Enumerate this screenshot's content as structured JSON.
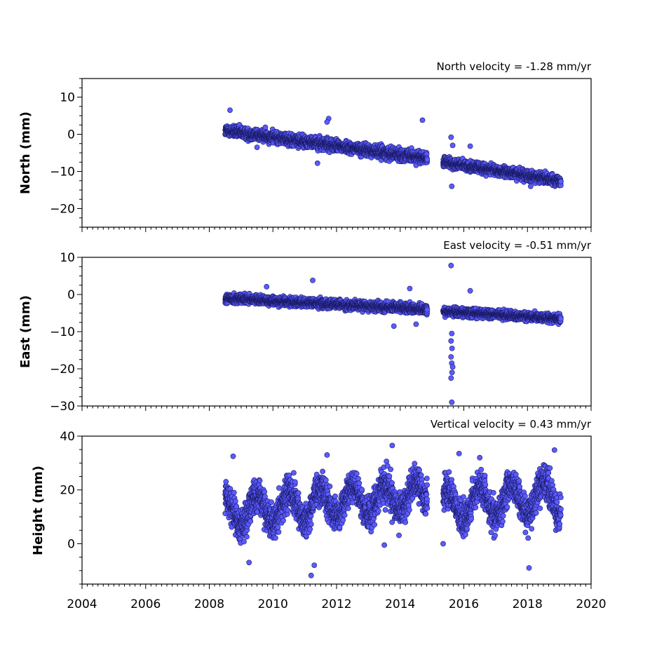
{
  "chart_data": [
    {
      "type": "scatter",
      "title": "North velocity = -1.28 mm/yr",
      "ylabel": "North (mm)",
      "xlim": [
        2004,
        2020
      ],
      "ylim": [
        -25,
        15
      ],
      "yticks": [
        10,
        0,
        -10,
        -20
      ],
      "ytick_labels": [
        "10",
        "0",
        "−10",
        "−20"
      ],
      "x_tick_labels_shown": false,
      "marker_color": "#5b5bff",
      "series": [
        {
          "segments": [
            {
              "x_start": 2008.5,
              "x_end": 2014.85,
              "y_start": 1.0,
              "y_end": -6.5,
              "spread": 1.4
            },
            {
              "x_start": 2015.35,
              "x_end": 2019.05,
              "y_start": -7.5,
              "y_end": -12.5,
              "spread": 1.2
            }
          ],
          "outliers": [
            {
              "x": 2008.65,
              "y": 6.5
            },
            {
              "x": 2011.75,
              "y": 4.2
            },
            {
              "x": 2011.7,
              "y": 3.3
            },
            {
              "x": 2014.7,
              "y": 3.8
            },
            {
              "x": 2015.6,
              "y": -0.8
            },
            {
              "x": 2015.65,
              "y": -3.0
            },
            {
              "x": 2015.62,
              "y": -14.0
            },
            {
              "x": 2016.2,
              "y": -3.2
            },
            {
              "x": 2011.4,
              "y": -7.8
            },
            {
              "x": 2009.5,
              "y": -3.5
            },
            {
              "x": 2018.1,
              "y": -14.0
            }
          ]
        }
      ]
    },
    {
      "type": "scatter",
      "title": "East velocity = -0.51 mm/yr",
      "ylabel": "East (mm)",
      "xlim": [
        2004,
        2020
      ],
      "ylim": [
        -30,
        10
      ],
      "yticks": [
        10,
        0,
        -10,
        -20,
        -30
      ],
      "ytick_labels": [
        "10",
        "0",
        "−10",
        "−20",
        "−30"
      ],
      "x_tick_labels_shown": false,
      "marker_color": "#5b5bff",
      "series": [
        {
          "segments": [
            {
              "x_start": 2008.5,
              "x_end": 2014.85,
              "y_start": -1.0,
              "y_end": -4.0,
              "spread": 1.1
            },
            {
              "x_start": 2015.35,
              "x_end": 2019.05,
              "y_start": -4.5,
              "y_end": -6.5,
              "spread": 1.0
            }
          ],
          "outliers": [
            {
              "x": 2011.25,
              "y": 3.8
            },
            {
              "x": 2014.3,
              "y": 1.6
            },
            {
              "x": 2009.8,
              "y": 2.1
            },
            {
              "x": 2015.6,
              "y": 7.8
            },
            {
              "x": 2016.2,
              "y": 1.0
            },
            {
              "x": 2015.62,
              "y": -10.5
            },
            {
              "x": 2015.6,
              "y": -12.5
            },
            {
              "x": 2015.63,
              "y": -14.5
            },
            {
              "x": 2015.6,
              "y": -16.8
            },
            {
              "x": 2015.62,
              "y": -18.5
            },
            {
              "x": 2015.65,
              "y": -19.5
            },
            {
              "x": 2015.63,
              "y": -21.0
            },
            {
              "x": 2015.6,
              "y": -22.5
            },
            {
              "x": 2015.62,
              "y": -29.0
            },
            {
              "x": 2013.8,
              "y": -8.5
            },
            {
              "x": 2014.5,
              "y": -8.0
            }
          ]
        }
      ]
    },
    {
      "type": "scatter",
      "title": "Vertical velocity = 0.43 mm/yr",
      "ylabel": "Height (mm)",
      "xlim": [
        2004,
        2020
      ],
      "ylim": [
        -15,
        40
      ],
      "yticks": [
        40,
        20,
        0
      ],
      "ytick_labels": [
        "40",
        "20",
        "0"
      ],
      "xticks": [
        2004,
        2006,
        2008,
        2010,
        2012,
        2014,
        2016,
        2018,
        2020
      ],
      "xtick_labels": [
        "2004",
        "2006",
        "2008",
        "2010",
        "2012",
        "2014",
        "2016",
        "2018",
        "2020"
      ],
      "x_tick_labels_shown": true,
      "marker_color": "#5b5bff",
      "series": [
        {
          "segments": [
            {
              "x_start": 2008.5,
              "x_end": 2014.85,
              "y_start": 12.0,
              "y_end": 18.0,
              "spread": 5.5,
              "seasonal_amplitude": 5.5
            },
            {
              "x_start": 2015.35,
              "x_end": 2019.05,
              "y_start": 14.0,
              "y_end": 18.0,
              "spread": 5.5,
              "seasonal_amplitude": 6.0
            }
          ],
          "outliers": [
            {
              "x": 2008.75,
              "y": 32.5
            },
            {
              "x": 2011.7,
              "y": 33.0
            },
            {
              "x": 2013.75,
              "y": 36.5
            },
            {
              "x": 2015.85,
              "y": 33.5
            },
            {
              "x": 2018.85,
              "y": 34.8
            },
            {
              "x": 2011.2,
              "y": -11.8
            },
            {
              "x": 2011.3,
              "y": -8.0
            },
            {
              "x": 2018.05,
              "y": -9.0
            },
            {
              "x": 2009.25,
              "y": -7.0
            },
            {
              "x": 2015.35,
              "y": 0.0
            },
            {
              "x": 2016.5,
              "y": 32.0
            },
            {
              "x": 2013.5,
              "y": -0.5
            }
          ]
        }
      ]
    }
  ]
}
